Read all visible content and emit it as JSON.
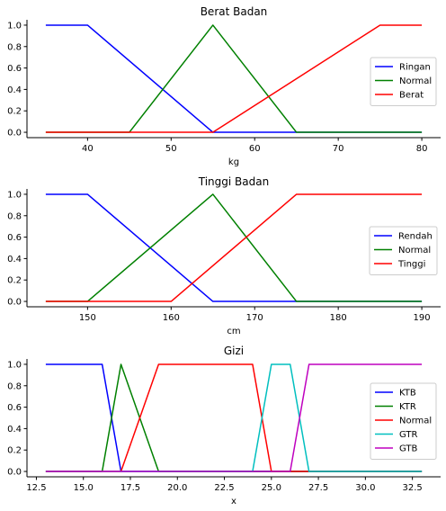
{
  "chart_data": [
    {
      "type": "line",
      "title": "Berat Badan",
      "xlabel": "kg",
      "ylabel": "",
      "xlim": [
        32.75,
        82.25
      ],
      "ylim": [
        -0.05,
        1.05
      ],
      "x_ticks": [
        40,
        50,
        60,
        70,
        80
      ],
      "y_ticks": [
        0.0,
        0.2,
        0.4,
        0.6,
        0.8,
        1.0
      ],
      "x_tick_labels": [
        "40",
        "50",
        "60",
        "70",
        "80"
      ],
      "y_tick_labels": [
        "0.0",
        "0.2",
        "0.4",
        "0.6",
        "0.8",
        "1.0"
      ],
      "grid": false,
      "legend_position": "center-right",
      "series": [
        {
          "name": "Ringan",
          "color": "#0000ff",
          "x": [
            35,
            40,
            55,
            80
          ],
          "y": [
            1,
            1,
            0,
            0
          ]
        },
        {
          "name": "Normal",
          "color": "#008000",
          "x": [
            35,
            45,
            55,
            65,
            80
          ],
          "y": [
            0,
            0,
            1,
            0,
            0
          ]
        },
        {
          "name": "Berat",
          "color": "#ff0000",
          "x": [
            35,
            55,
            75,
            80
          ],
          "y": [
            0,
            0,
            1,
            1
          ]
        }
      ]
    },
    {
      "type": "line",
      "title": "Tinggi Badan",
      "xlabel": "cm",
      "ylabel": "",
      "xlim": [
        142.75,
        192.25
      ],
      "ylim": [
        -0.05,
        1.05
      ],
      "x_ticks": [
        150,
        160,
        170,
        180,
        190
      ],
      "y_ticks": [
        0.0,
        0.2,
        0.4,
        0.6,
        0.8,
        1.0
      ],
      "x_tick_labels": [
        "150",
        "160",
        "170",
        "180",
        "190"
      ],
      "y_tick_labels": [
        "0.0",
        "0.2",
        "0.4",
        "0.6",
        "0.8",
        "1.0"
      ],
      "grid": false,
      "legend_position": "center-right",
      "series": [
        {
          "name": "Rendah",
          "color": "#0000ff",
          "x": [
            145,
            150,
            165,
            190
          ],
          "y": [
            1,
            1,
            0,
            0
          ]
        },
        {
          "name": "Normal",
          "color": "#008000",
          "x": [
            145,
            150,
            165,
            175,
            190
          ],
          "y": [
            0,
            0,
            1,
            0,
            0
          ]
        },
        {
          "name": "Tinggi",
          "color": "#ff0000",
          "x": [
            145,
            160,
            175,
            190
          ],
          "y": [
            0,
            0,
            1,
            1
          ]
        }
      ]
    },
    {
      "type": "line",
      "title": "Gizi",
      "xlabel": "x",
      "ylabel": "",
      "xlim": [
        12.0,
        34.0
      ],
      "ylim": [
        -0.05,
        1.05
      ],
      "x_ticks": [
        12.5,
        15.0,
        17.5,
        20.0,
        22.5,
        25.0,
        27.5,
        30.0,
        32.5
      ],
      "y_ticks": [
        0.0,
        0.2,
        0.4,
        0.6,
        0.8,
        1.0
      ],
      "x_tick_labels": [
        "12.5",
        "15.0",
        "17.5",
        "20.0",
        "22.5",
        "25.0",
        "27.5",
        "30.0",
        "32.5"
      ],
      "y_tick_labels": [
        "0.0",
        "0.2",
        "0.4",
        "0.6",
        "0.8",
        "1.0"
      ],
      "grid": false,
      "legend_position": "center-right",
      "series": [
        {
          "name": "KTB",
          "color": "#0000ff",
          "x": [
            13,
            16,
            17,
            33
          ],
          "y": [
            1,
            1,
            0,
            0
          ]
        },
        {
          "name": "KTR",
          "color": "#008000",
          "x": [
            13,
            16,
            17,
            19,
            33
          ],
          "y": [
            0,
            0,
            1,
            0,
            0
          ]
        },
        {
          "name": "Normal",
          "color": "#ff0000",
          "x": [
            13,
            17,
            19,
            24,
            25,
            33
          ],
          "y": [
            0,
            0,
            1,
            1,
            0,
            0
          ]
        },
        {
          "name": "GTR",
          "color": "#00bfbf",
          "x": [
            13,
            24,
            25,
            26,
            27,
            33
          ],
          "y": [
            0,
            0,
            1,
            1,
            0,
            0
          ]
        },
        {
          "name": "GTB",
          "color": "#bf00bf",
          "x": [
            13,
            26,
            27,
            33
          ],
          "y": [
            0,
            0,
            1,
            1
          ]
        }
      ]
    }
  ]
}
